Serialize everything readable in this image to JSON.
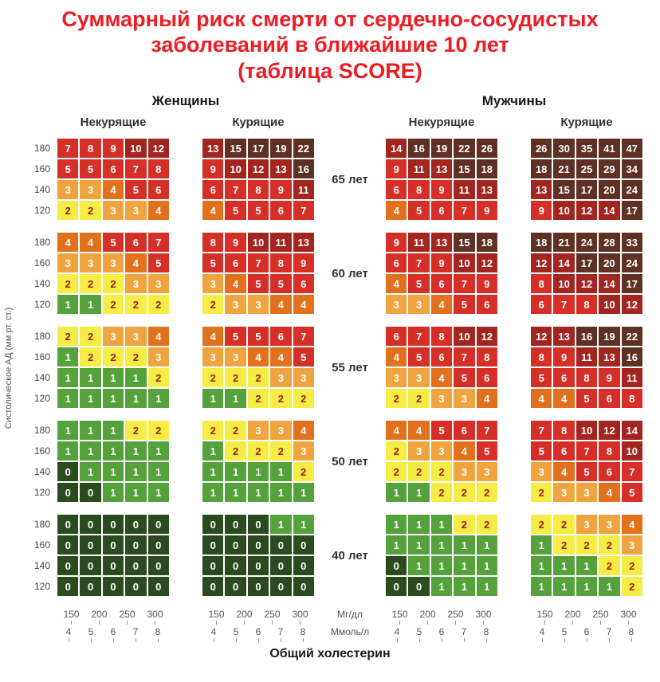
{
  "title": {
    "line1": "Суммарный риск смерти от сердечно-сосудистых",
    "line2": "заболеваний в ближайшие 10 лет",
    "line3": "(таблица SCORE)"
  },
  "headers": {
    "women": "Женщины",
    "men": "Мужчины",
    "women_nonsmokers": "Некурящие",
    "women_smokers": "Курящие",
    "men_nonsmokers": "Некурящие",
    "men_smokers": "Курящие"
  },
  "ages": [
    "65 лет",
    "60 лет",
    "55 лет",
    "50 лет",
    "40 лет"
  ],
  "y_axis": {
    "label": "Систолическое АД (мм рт. ст.)",
    "bp_values": [
      "180",
      "160",
      "140",
      "120"
    ]
  },
  "x_axis": {
    "mg_values": [
      "150",
      "200",
      "250",
      "300"
    ],
    "mmol_values": [
      "4",
      "5",
      "6",
      "7",
      "8"
    ],
    "mg_unit": "Мг/дл",
    "mmol_unit": "Ммоль/л",
    "title": "Общий холестерин"
  },
  "colors": {
    "title_red": "#ee1c24",
    "risk_0": "#2a4b1e",
    "risk_1": "#55a13b",
    "risk_2": "#f5ec46",
    "risk_3": "#efa440",
    "risk_4": "#e2711d",
    "risk_5_9": "#d52f27",
    "risk_10_14": "#a32520",
    "risk_15_plus": "#5f3122",
    "yellow_cell_text": "#9b1f10",
    "default_cell_text": "#ffffff"
  },
  "chart_data": {
    "type": "heatmap",
    "bp_rows": [
      180,
      160,
      140,
      120
    ],
    "cholesterol_cols_mmol": [
      4,
      5,
      6,
      7,
      8
    ],
    "cholesterol_cols_mg": [
      150,
      200,
      250,
      300
    ],
    "block_order": [
      "women_nonsmoking",
      "women_smoking",
      "men_nonsmoking",
      "men_smoking"
    ],
    "age_rows": [
      {
        "age": "65 лет",
        "women_nonsmoking": [
          [
            7,
            8,
            9,
            10,
            12
          ],
          [
            5,
            5,
            6,
            7,
            8
          ],
          [
            3,
            3,
            4,
            5,
            6
          ],
          [
            2,
            2,
            3,
            3,
            4
          ]
        ],
        "women_smoking": [
          [
            13,
            15,
            17,
            19,
            22
          ],
          [
            9,
            10,
            12,
            13,
            16
          ],
          [
            6,
            7,
            8,
            9,
            11
          ],
          [
            4,
            5,
            5,
            6,
            7
          ]
        ],
        "men_nonsmoking": [
          [
            14,
            16,
            19,
            22,
            26
          ],
          [
            9,
            11,
            13,
            15,
            18
          ],
          [
            6,
            8,
            9,
            11,
            13
          ],
          [
            4,
            5,
            6,
            7,
            9
          ]
        ],
        "men_smoking": [
          [
            26,
            30,
            35,
            41,
            47
          ],
          [
            18,
            21,
            25,
            29,
            34
          ],
          [
            13,
            15,
            17,
            20,
            24
          ],
          [
            9,
            10,
            12,
            14,
            17
          ]
        ]
      },
      {
        "age": "60 лет",
        "women_nonsmoking": [
          [
            4,
            4,
            5,
            6,
            7
          ],
          [
            3,
            3,
            3,
            4,
            5
          ],
          [
            2,
            2,
            2,
            3,
            3
          ],
          [
            1,
            1,
            2,
            2,
            2
          ]
        ],
        "women_smoking": [
          [
            8,
            9,
            10,
            11,
            13
          ],
          [
            5,
            6,
            7,
            8,
            9
          ],
          [
            3,
            4,
            5,
            5,
            6
          ],
          [
            2,
            3,
            3,
            4,
            4
          ]
        ],
        "men_nonsmoking": [
          [
            9,
            11,
            13,
            15,
            18
          ],
          [
            6,
            7,
            9,
            10,
            12
          ],
          [
            4,
            5,
            6,
            7,
            9
          ],
          [
            3,
            3,
            4,
            5,
            6
          ]
        ],
        "men_smoking": [
          [
            18,
            21,
            24,
            28,
            33
          ],
          [
            12,
            14,
            17,
            20,
            24
          ],
          [
            8,
            10,
            12,
            14,
            17
          ],
          [
            6,
            7,
            8,
            10,
            12
          ]
        ]
      },
      {
        "age": "55 лет",
        "women_nonsmoking": [
          [
            2,
            2,
            3,
            3,
            4
          ],
          [
            1,
            2,
            2,
            2,
            3
          ],
          [
            1,
            1,
            1,
            1,
            2
          ],
          [
            1,
            1,
            1,
            1,
            1
          ]
        ],
        "women_smoking": [
          [
            4,
            5,
            5,
            6,
            7
          ],
          [
            3,
            3,
            4,
            4,
            5
          ],
          [
            2,
            2,
            2,
            3,
            3
          ],
          [
            1,
            1,
            2,
            2,
            2
          ]
        ],
        "men_nonsmoking": [
          [
            6,
            7,
            8,
            10,
            12
          ],
          [
            4,
            5,
            6,
            7,
            8
          ],
          [
            3,
            3,
            4,
            5,
            6
          ],
          [
            2,
            2,
            3,
            3,
            4
          ]
        ],
        "men_smoking": [
          [
            12,
            13,
            16,
            19,
            22
          ],
          [
            8,
            9,
            11,
            13,
            16
          ],
          [
            5,
            6,
            8,
            9,
            11
          ],
          [
            4,
            4,
            5,
            6,
            8
          ]
        ]
      },
      {
        "age": "50 лет",
        "women_nonsmoking": [
          [
            1,
            1,
            1,
            2,
            2
          ],
          [
            1,
            1,
            1,
            1,
            1
          ],
          [
            0,
            1,
            1,
            1,
            1
          ],
          [
            0,
            0,
            1,
            1,
            1
          ]
        ],
        "women_smoking": [
          [
            2,
            2,
            3,
            3,
            4
          ],
          [
            1,
            2,
            2,
            2,
            3
          ],
          [
            1,
            1,
            1,
            1,
            2
          ],
          [
            1,
            1,
            1,
            1,
            1
          ]
        ],
        "men_nonsmoking": [
          [
            4,
            4,
            5,
            6,
            7
          ],
          [
            2,
            3,
            3,
            4,
            5
          ],
          [
            2,
            2,
            2,
            3,
            3
          ],
          [
            1,
            1,
            2,
            2,
            2
          ]
        ],
        "men_smoking": [
          [
            7,
            8,
            10,
            12,
            14
          ],
          [
            5,
            6,
            7,
            8,
            10
          ],
          [
            3,
            4,
            5,
            6,
            7
          ],
          [
            2,
            3,
            3,
            4,
            5
          ]
        ]
      },
      {
        "age": "40 лет",
        "women_nonsmoking": [
          [
            0,
            0,
            0,
            0,
            0
          ],
          [
            0,
            0,
            0,
            0,
            0
          ],
          [
            0,
            0,
            0,
            0,
            0
          ],
          [
            0,
            0,
            0,
            0,
            0
          ]
        ],
        "women_smoking": [
          [
            0,
            0,
            0,
            1,
            1
          ],
          [
            0,
            0,
            0,
            0,
            0
          ],
          [
            0,
            0,
            0,
            0,
            0
          ],
          [
            0,
            0,
            0,
            0,
            0
          ]
        ],
        "men_nonsmoking": [
          [
            1,
            1,
            1,
            2,
            2
          ],
          [
            1,
            1,
            1,
            1,
            1
          ],
          [
            0,
            1,
            1,
            1,
            1
          ],
          [
            0,
            0,
            1,
            1,
            1
          ]
        ],
        "men_smoking": [
          [
            2,
            2,
            3,
            3,
            4
          ],
          [
            1,
            2,
            2,
            2,
            3
          ],
          [
            1,
            1,
            1,
            2,
            2
          ],
          [
            1,
            1,
            1,
            1,
            2
          ]
        ]
      }
    ]
  }
}
